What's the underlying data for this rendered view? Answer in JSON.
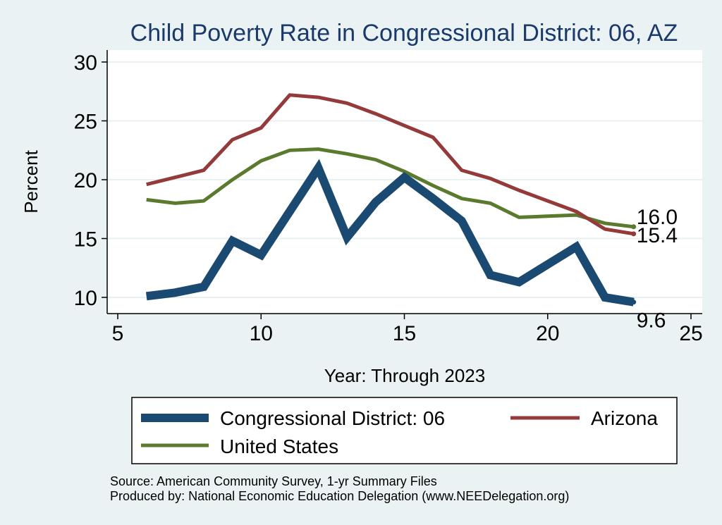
{
  "chart_data": {
    "type": "line",
    "title": "Child Poverty Rate in Congressional District:  06, AZ",
    "xlabel": "Year: Through 2023",
    "ylabel": "Percent",
    "xlim": [
      5,
      25
    ],
    "ylim": [
      9,
      31
    ],
    "xticks": [
      5,
      10,
      15,
      20,
      25
    ],
    "yticks": [
      10,
      15,
      20,
      25,
      30
    ],
    "grid": true,
    "legend_position": "bottom",
    "series": [
      {
        "name": "Congressional District:  06",
        "color": "#1a4a72",
        "x": [
          6,
          7,
          8,
          9,
          10,
          11,
          12,
          13,
          14,
          15,
          16,
          17,
          18,
          19,
          20,
          21,
          22,
          23
        ],
        "values": [
          10.1,
          10.4,
          10.9,
          14.8,
          13.6,
          17.3,
          21.0,
          15.1,
          18.1,
          20.2,
          18.4,
          16.5,
          11.9,
          11.3,
          12.8,
          14.3,
          10.0,
          9.6
        ],
        "end_label": "9.6"
      },
      {
        "name": "Arizona",
        "color": "#943a3a",
        "x": [
          6,
          7,
          8,
          9,
          10,
          11,
          12,
          13,
          14,
          15,
          16,
          17,
          18,
          19,
          20,
          21,
          22,
          23
        ],
        "values": [
          19.6,
          20.2,
          20.8,
          23.4,
          24.4,
          27.2,
          27.0,
          26.5,
          25.6,
          24.6,
          23.6,
          20.8,
          20.1,
          19.1,
          18.2,
          17.3,
          15.8,
          15.4
        ],
        "end_label": "15.4"
      },
      {
        "name": "United States",
        "color": "#5a7a2e",
        "x": [
          6,
          7,
          8,
          9,
          10,
          11,
          12,
          13,
          14,
          15,
          16,
          17,
          18,
          19,
          20,
          21,
          22,
          23
        ],
        "values": [
          18.3,
          18.0,
          18.2,
          20.0,
          21.6,
          22.5,
          22.6,
          22.2,
          21.7,
          20.7,
          19.5,
          18.4,
          18.0,
          16.8,
          16.9,
          17.0,
          16.3,
          16.0
        ],
        "end_label": "16.0"
      }
    ]
  },
  "notes": {
    "source": "Source: American Community Survey, 1-yr Summary Files",
    "producer": "Produced by: National Economic Education Delegation (www.NEEDelegation.org)"
  }
}
